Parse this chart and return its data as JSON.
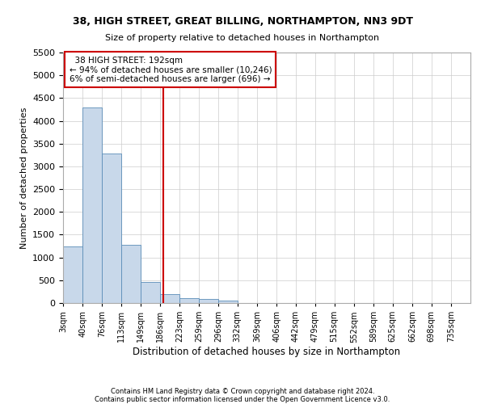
{
  "title1": "38, HIGH STREET, GREAT BILLING, NORTHAMPTON, NN3 9DT",
  "title2": "Size of property relative to detached houses in Northampton",
  "xlabel": "Distribution of detached houses by size in Northampton",
  "ylabel": "Number of detached properties",
  "footnote1": "Contains HM Land Registry data © Crown copyright and database right 2024.",
  "footnote2": "Contains public sector information licensed under the Open Government Licence v3.0.",
  "annotation_line1": "  38 HIGH STREET: 192sqm  ",
  "annotation_line2": "← 94% of detached houses are smaller (10,246)",
  "annotation_line3": "6% of semi-detached houses are larger (696) →",
  "property_line_x": 192,
  "bar_color": "#c8d8ea",
  "bar_edge_color": "#5b8db8",
  "annotation_box_color": "#ffffff",
  "annotation_box_edge_color": "#cc0000",
  "vline_color": "#cc0000",
  "categories": [
    "3sqm",
    "40sqm",
    "76sqm",
    "113sqm",
    "149sqm",
    "186sqm",
    "223sqm",
    "259sqm",
    "296sqm",
    "332sqm",
    "369sqm",
    "406sqm",
    "442sqm",
    "479sqm",
    "515sqm",
    "552sqm",
    "589sqm",
    "625sqm",
    "662sqm",
    "698sqm",
    "735sqm"
  ],
  "bin_edges": [
    3,
    40,
    76,
    113,
    149,
    186,
    223,
    259,
    296,
    332,
    369,
    406,
    442,
    479,
    515,
    552,
    589,
    625,
    662,
    698,
    735,
    772
  ],
  "values": [
    1250,
    4300,
    3280,
    1270,
    460,
    200,
    100,
    80,
    55,
    0,
    0,
    0,
    0,
    0,
    0,
    0,
    0,
    0,
    0,
    0,
    0
  ],
  "ylim": [
    0,
    5500
  ],
  "yticks": [
    0,
    500,
    1000,
    1500,
    2000,
    2500,
    3000,
    3500,
    4000,
    4500,
    5000,
    5500
  ],
  "background_color": "#ffffff",
  "grid_color": "#cccccc",
  "fig_width": 6.0,
  "fig_height": 5.0,
  "dpi": 100
}
